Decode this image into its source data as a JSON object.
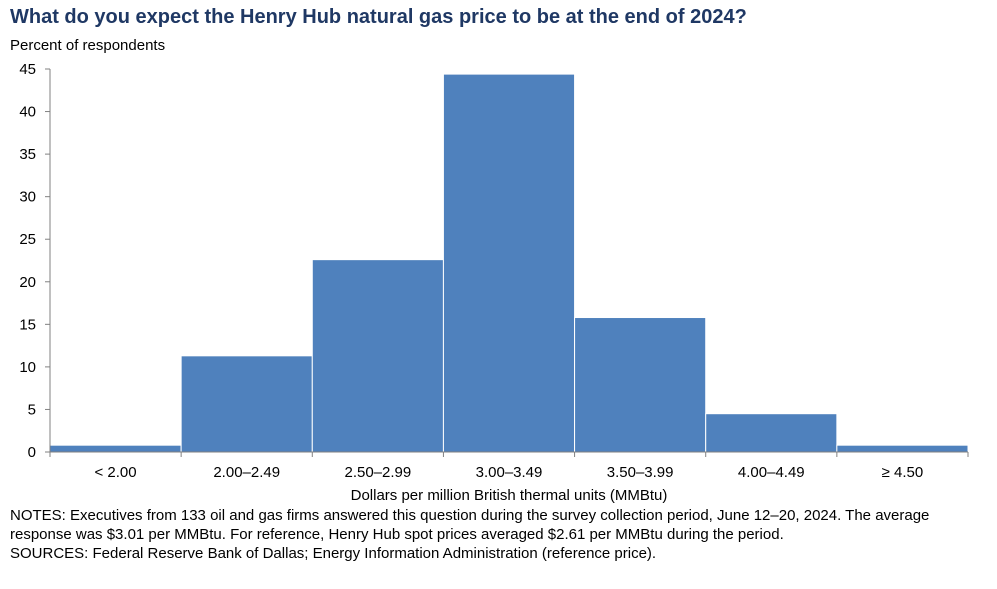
{
  "chart_data": {
    "type": "bar",
    "title": "What do you expect the Henry Hub natural gas price to be at the end of 2024?",
    "ylabel": "Percent of respondents",
    "xlabel": "Dollars per million British thermal units (MMBtu)",
    "categories": [
      "< 2.00",
      "2.00–2.49",
      "2.50–2.99",
      "3.00–3.49",
      "3.50–3.99",
      "4.00–4.49",
      "≥ 4.50"
    ],
    "values": [
      0.8,
      11.3,
      22.6,
      44.4,
      15.8,
      4.5,
      0.8
    ],
    "ylim": [
      0,
      45
    ],
    "yticks": [
      0,
      5,
      10,
      15,
      20,
      25,
      30,
      35,
      40,
      45
    ],
    "bar_color": "#4f81bd",
    "grid": false,
    "legend": "none"
  },
  "notes": {
    "line1": "NOTES: Executives from 133 oil and gas firms answered this question during the survey collection period, June 12–20, 2024. The average response was $3.01 per MMBtu. For reference, Henry Hub spot prices averaged $2.61 per MMBtu during the period.",
    "line2": "SOURCES: Federal Reserve Bank of Dallas; Energy Information Administration (reference price)."
  }
}
